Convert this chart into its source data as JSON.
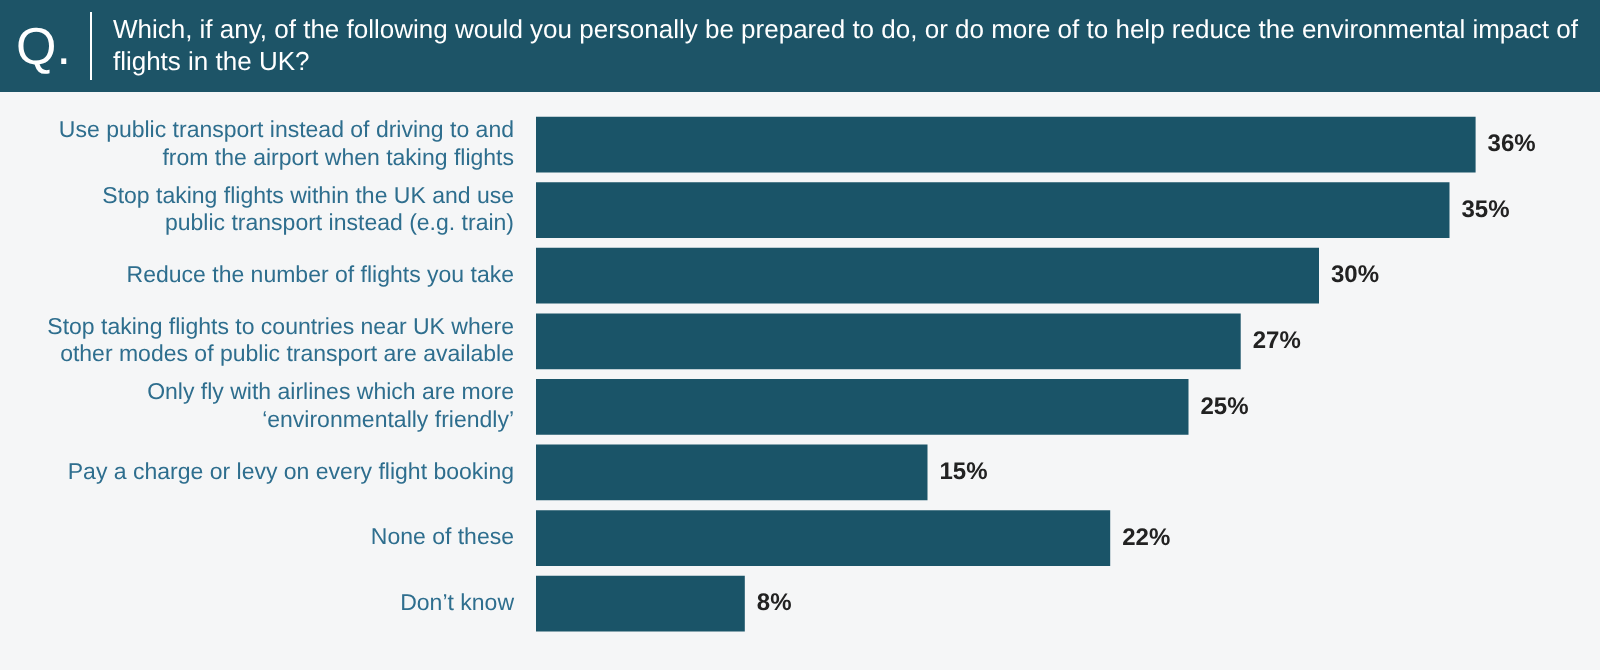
{
  "chart_data": {
    "type": "bar",
    "orientation": "horizontal",
    "title": "Which, if any, of the following would you personally be prepared to do, or do more of to help reduce the environmental impact of flights in the UK?",
    "annotations": [
      "Q."
    ],
    "categories": [
      "Use public transport instead of driving to and from the airport when taking flights",
      "Stop taking flights within the UK and use public transport instead (e.g. train)",
      "Reduce the number of flights you take",
      "Stop taking flights to countries near UK where other modes of public transport are available",
      "Only fly with airlines which are more ‘environmentally friendly’",
      "Pay a charge or levy on every flight booking",
      "None of these",
      "Don’t know"
    ],
    "values": [
      36,
      35,
      30,
      27,
      25,
      15,
      22,
      8
    ],
    "value_labels": [
      "36%",
      "35%",
      "30%",
      "27%",
      "25%",
      "15%",
      "22%",
      "8%"
    ],
    "color": "#1a5468",
    "legend": false
  }
}
